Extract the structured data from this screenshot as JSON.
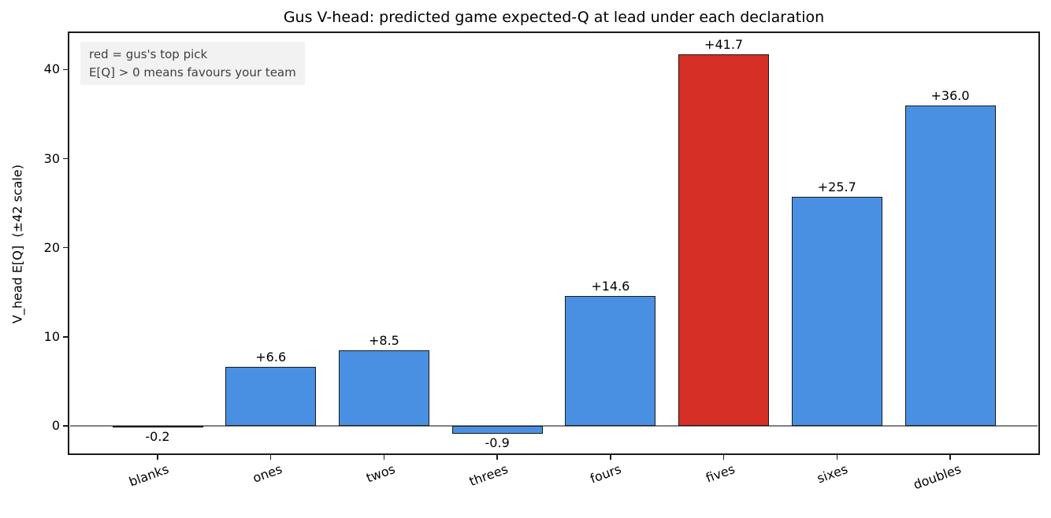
{
  "figure": {
    "title": "Gus V-head: predicted game expected-Q at lead under each declaration",
    "ylabel": "V_head E[Q]  (±42 scale)",
    "annotation": {
      "line1": "red = gus's top pick",
      "line2": "E[Q] > 0 means favours your team"
    },
    "colors": {
      "bar_default": "#4a90e2",
      "bar_highlight": "#d62f26",
      "bar_edge": "#1a1a1a",
      "zero_line": "#808080",
      "annotation_bg": "#f2f2f2",
      "annotation_text": "#404040",
      "axis": "#1a1a1a"
    }
  },
  "chart_data": {
    "type": "bar",
    "title": "Gus V-head: predicted game expected-Q at lead under each declaration",
    "xlabel": "",
    "ylabel": "V_head E[Q]  (±42 scale)",
    "categories": [
      "blanks",
      "ones",
      "twos",
      "threes",
      "fours",
      "fives",
      "sixes",
      "doubles"
    ],
    "values": [
      -0.2,
      6.6,
      8.5,
      -0.9,
      14.6,
      41.7,
      25.7,
      36.0
    ],
    "bar_labels": [
      "-0.2",
      "+6.6",
      "+8.5",
      "-0.9",
      "+14.6",
      "+41.7",
      "+25.7",
      "+36.0"
    ],
    "highlight_index": 5,
    "highlight_category": "fives",
    "highlight_meaning": "gus's top pick",
    "yticks": [
      0,
      10,
      20,
      30,
      40
    ],
    "ylim": [
      -3.1,
      44.1
    ],
    "grid": false,
    "legend": null,
    "zero_line": true,
    "xtick_rotation_deg": 20,
    "annotations": [
      "red = gus's top pick",
      "E[Q] > 0 means favours your team"
    ]
  }
}
